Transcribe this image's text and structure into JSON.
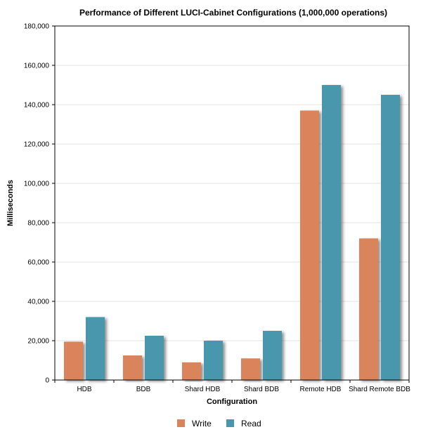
{
  "chart_data": {
    "type": "bar",
    "title": "Performance of Different LUCI-Cabinet Configurations (1,000,000 operations)",
    "xlabel": "Configuration",
    "ylabel": "Milliseconds",
    "categories": [
      "HDB",
      "BDB",
      "Shard HDB",
      "Shard BDB",
      "Remote HDB",
      "Shard Remote BDB"
    ],
    "series": [
      {
        "name": "Write",
        "color": "#d9845a",
        "values": [
          19500,
          12500,
          9000,
          11000,
          137000,
          72000
        ]
      },
      {
        "name": "Read",
        "color": "#4a97ad",
        "values": [
          32000,
          22500,
          20000,
          25000,
          150000,
          145000
        ]
      }
    ],
    "ylim": [
      0,
      180000
    ],
    "yticks": [
      0,
      20000,
      40000,
      60000,
      80000,
      100000,
      120000,
      140000,
      160000,
      180000
    ],
    "ytick_labels": [
      "0",
      "20,000",
      "40,000",
      "60,000",
      "80,000",
      "100,000",
      "120,000",
      "140,000",
      "160,000",
      "180,000"
    ],
    "grid": true,
    "legend": "bottom"
  }
}
